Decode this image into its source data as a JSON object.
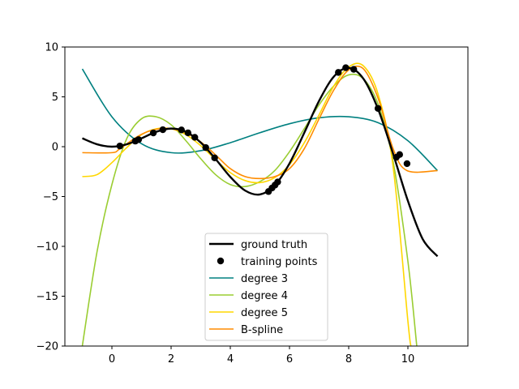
{
  "chart_data": {
    "type": "line",
    "title": "",
    "xlabel": "",
    "ylabel": "",
    "xlim": [
      -1.6,
      11.6
    ],
    "ylim": [
      -20,
      10
    ],
    "xticks": [
      0,
      2,
      4,
      6,
      8,
      10
    ],
    "yticks": [
      10,
      5,
      0,
      -5,
      -10,
      -15,
      -20
    ],
    "xtick_labels": [
      "0",
      "2",
      "4",
      "6",
      "8",
      "10"
    ],
    "ytick_labels": [
      "10",
      "5",
      "0",
      "−5",
      "−10",
      "−15",
      "−20"
    ],
    "grid": false,
    "legend_position": "lower center",
    "series": [
      {
        "name": "ground truth",
        "color": "#000000",
        "width": 2.4,
        "x": [
          -1,
          -0.5,
          0,
          0.5,
          1,
          1.5,
          2,
          2.5,
          3,
          3.5,
          4,
          4.5,
          5,
          5.5,
          6,
          6.5,
          7,
          7.5,
          8,
          8.5,
          9,
          9.5,
          10,
          10.5,
          11
        ],
        "y": [
          0.84,
          0.24,
          0,
          0.24,
          0.84,
          1.5,
          1.82,
          1.5,
          0.42,
          -1.23,
          -3.03,
          -4.4,
          -4.79,
          -3.89,
          -1.68,
          1.4,
          4.6,
          7.04,
          7.91,
          6.8,
          3.71,
          -0.71,
          -5.44,
          -9.27,
          -11.0
        ]
      },
      {
        "name": "training points",
        "color": "#000000",
        "marker": "o",
        "x": [
          0.27,
          0.79,
          0.9,
          1.4,
          1.72,
          2.35,
          2.57,
          2.8,
          3.17,
          3.47,
          5.29,
          5.41,
          5.51,
          5.6,
          7.65,
          7.9,
          8.17,
          8.99,
          9.61,
          9.72,
          9.97
        ],
        "y": [
          0.07,
          0.56,
          0.71,
          1.38,
          1.7,
          1.68,
          1.39,
          0.94,
          -0.09,
          -1.12,
          -4.5,
          -4.14,
          -3.85,
          -3.54,
          7.45,
          7.92,
          7.76,
          3.84,
          -1.06,
          -0.79,
          -1.7
        ]
      },
      {
        "name": "degree 3",
        "color": "#008080",
        "width": 1.6,
        "x": [
          -1,
          0,
          1,
          2,
          3,
          4,
          5,
          6,
          7,
          8,
          9,
          10,
          11
        ],
        "y": [
          7.8,
          3.0,
          0.3,
          -0.6,
          -0.4,
          0.4,
          1.4,
          2.3,
          2.9,
          3.0,
          2.4,
          0.6,
          -2.4
        ]
      },
      {
        "name": "degree 4",
        "color": "#9acd32",
        "width": 1.6,
        "x": [
          -1,
          -0.5,
          0,
          0.5,
          1,
          1.5,
          2,
          2.5,
          3,
          3.5,
          4,
          4.5,
          5,
          5.5,
          6,
          6.5,
          7,
          7.5,
          8,
          8.5,
          9,
          9.5,
          10,
          10.3
        ],
        "y": [
          -20,
          -10.5,
          -3.8,
          0.8,
          2.8,
          3.0,
          2.2,
          0.6,
          -1.2,
          -2.8,
          -3.8,
          -4.0,
          -3.5,
          -2.4,
          -0.5,
          1.8,
          4.2,
          6.1,
          7.2,
          6.8,
          4.2,
          -1.5,
          -11.5,
          -20
        ]
      },
      {
        "name": "degree 5",
        "color": "#ffd700",
        "width": 1.6,
        "x": [
          -1,
          -0.5,
          0,
          0.5,
          1,
          1.5,
          2,
          2.5,
          3,
          3.5,
          4,
          4.5,
          5,
          5.5,
          6,
          6.5,
          7,
          7.5,
          8,
          8.5,
          9,
          9.5,
          10,
          10.1
        ],
        "y": [
          -3.0,
          -2.8,
          -1.6,
          -0.1,
          1.2,
          1.8,
          1.8,
          1.2,
          0.1,
          -1.3,
          -2.6,
          -3.4,
          -3.6,
          -3.1,
          -1.8,
          0.4,
          3.2,
          6.1,
          8.0,
          8.1,
          5.2,
          -2.0,
          -17.5,
          -20
        ]
      },
      {
        "name": "B-spline",
        "color": "#ff8c00",
        "width": 1.6,
        "x": [
          -1,
          0,
          0.27,
          0.8,
          1.2,
          1.6,
          2,
          2.4,
          2.8,
          3.2,
          3.6,
          4,
          4.5,
          5,
          5.5,
          6,
          6.5,
          7,
          7.5,
          8,
          8.5,
          9,
          9.5,
          9.97,
          11
        ],
        "y": [
          -0.6,
          -0.6,
          -0.2,
          0.9,
          1.5,
          1.8,
          1.8,
          1.5,
          0.9,
          0.0,
          -1.1,
          -2.2,
          -3.0,
          -3.2,
          -3.0,
          -2.2,
          -0.2,
          2.8,
          5.7,
          7.7,
          7.8,
          4.8,
          -0.2,
          -2.4,
          -2.4
        ]
      }
    ],
    "legend": [
      "ground truth",
      "training points",
      "degree 3",
      "degree 4",
      "degree 5",
      "B-spline"
    ]
  }
}
